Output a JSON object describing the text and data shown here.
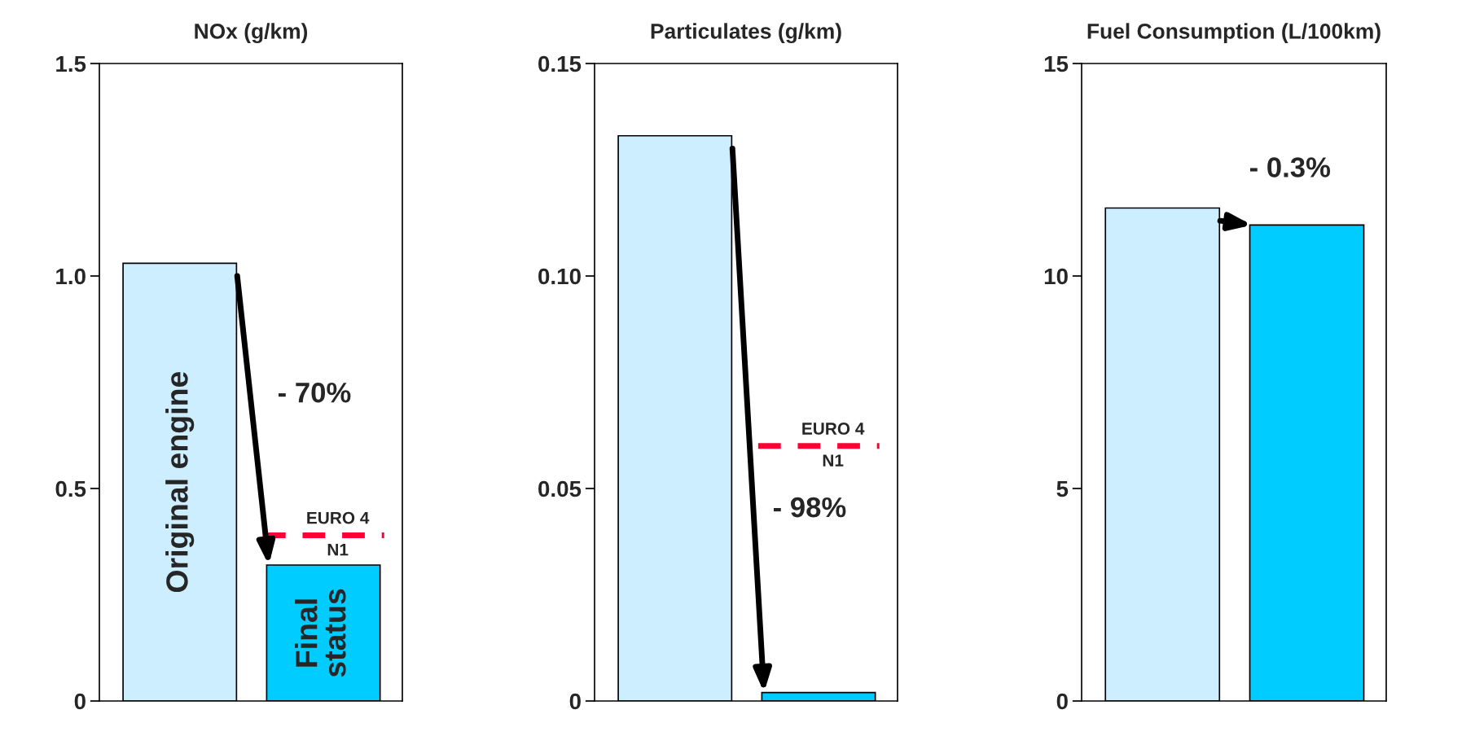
{
  "chart_data": [
    {
      "type": "bar",
      "title": "NOx (g/km)",
      "categories": [
        "Original engine",
        "Final\nstatus"
      ],
      "values": [
        1.03,
        0.32
      ],
      "colors": [
        "#cceeff",
        "#00ccff"
      ],
      "ylim": [
        0,
        1.5
      ],
      "yticks": [
        0,
        0.5,
        {
          "value": 1,
          "label": "1.0"
        },
        1.5
      ],
      "ref_lines": [
        {
          "axis": "y",
          "value": 0.39,
          "label": "EURO 4\nN1",
          "color": "#ff0033",
          "line_style": "dashed"
        }
      ],
      "annotations": [
        "- 70%"
      ]
    },
    {
      "type": "bar",
      "title": "Particulates (g/km)",
      "categories": [
        null,
        null
      ],
      "values": [
        0.133,
        0.002
      ],
      "colors": [
        "#cceeff",
        "#00ccff"
      ],
      "ylim": [
        0,
        0.15
      ],
      "yticks": [
        0,
        0.05,
        {
          "value": 0.1,
          "label": "0.10"
        },
        0.15
      ],
      "ref_lines": [
        {
          "axis": "y",
          "value": 0.06,
          "label": "EURO 4\nN1",
          "color": "#ff0033",
          "line_style": "dashed"
        }
      ],
      "annotations": [
        "- 98%"
      ]
    },
    {
      "type": "bar",
      "title": "Fuel Consumption (L/100km)",
      "categories": [
        null,
        null
      ],
      "values": [
        11.6,
        11.2
      ],
      "colors": [
        "#cceeff",
        "#00ccff"
      ],
      "ylim": [
        0,
        15
      ],
      "yticks": [
        0,
        5,
        10,
        15
      ],
      "annotations": [
        "- 0.3%"
      ]
    }
  ]
}
